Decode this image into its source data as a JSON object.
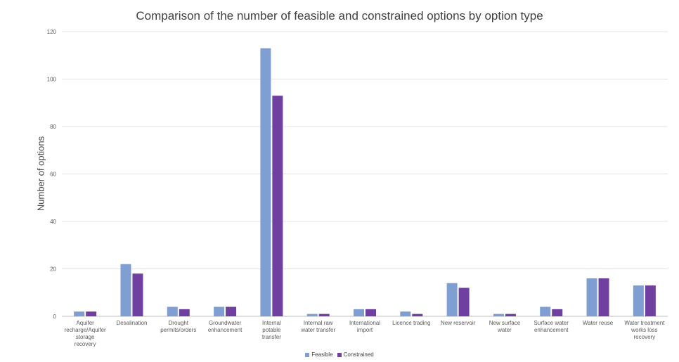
{
  "chart_data": {
    "type": "bar",
    "title": "Comparison of the number of feasible and constrained options by option type",
    "xlabel": "",
    "ylabel": "Number of options",
    "ylim": [
      0,
      120
    ],
    "yticks": [
      0,
      20,
      40,
      60,
      80,
      100,
      120
    ],
    "grid": true,
    "legend_position": "bottom",
    "categories": [
      "Aquifer recharge/Aquifer storage recovery",
      "Desalination",
      "Drought permits/orders",
      "Groundwater enhancement",
      "Internal potable transfer",
      "Internal raw water transfer",
      "International import",
      "Licence trading",
      "New reservoir",
      "New surface water",
      "Surface water enhancement",
      "Water reuse",
      "Water treatment works loss recovery"
    ],
    "series": [
      {
        "name": "Feasible",
        "color": "#7f9fd3",
        "values": [
          2,
          22,
          4,
          4,
          113,
          1,
          3,
          2,
          14,
          1,
          4,
          16,
          13
        ]
      },
      {
        "name": "Constrained",
        "color": "#7040a0",
        "values": [
          2,
          18,
          3,
          4,
          93,
          1,
          3,
          1,
          12,
          1,
          3,
          16,
          13
        ]
      }
    ]
  }
}
